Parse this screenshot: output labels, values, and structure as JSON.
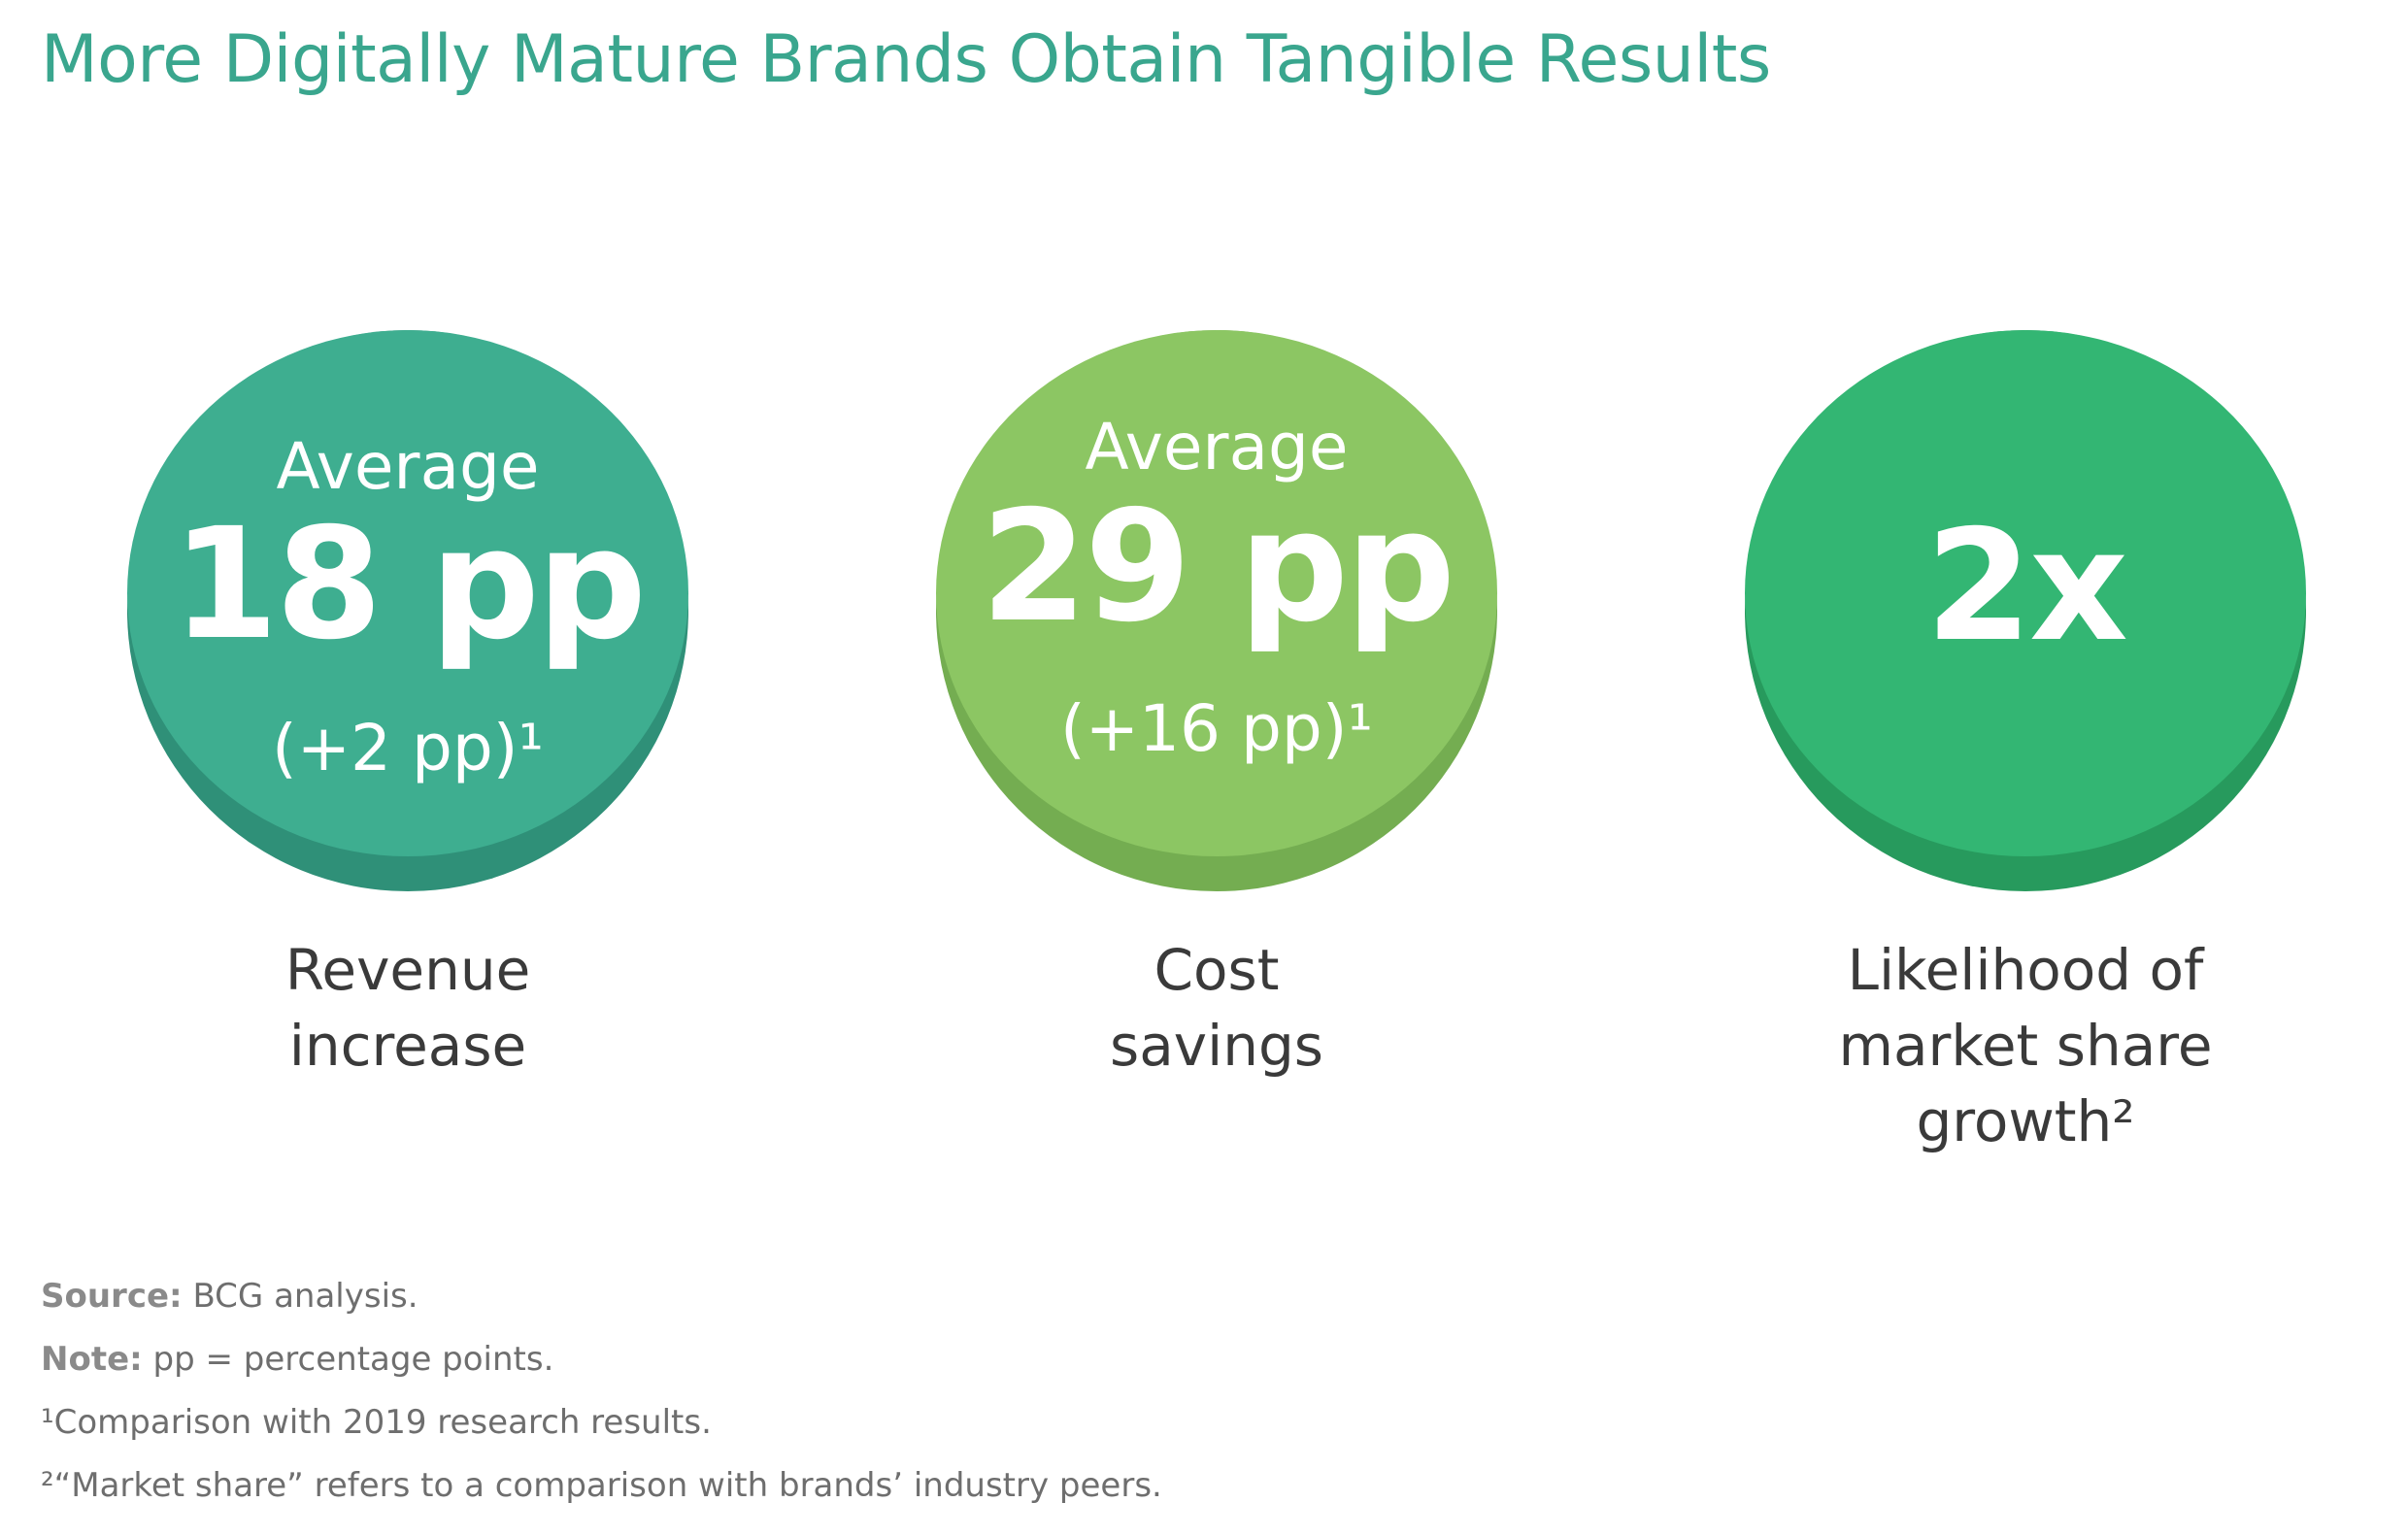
{
  "title": "More Digitally Mature Brands Obtain Tangible Results",
  "colors": {
    "title": "#3aa68e",
    "circle1": "#3eae90",
    "circle1_shadow": "#2f9078",
    "circle2": "#8cc663",
    "circle2_shadow": "#74ad51",
    "circle3": "#33b673",
    "circle3_shadow": "#279a5d"
  },
  "metrics": [
    {
      "avg_label": "Average",
      "value": "18 pp",
      "delta": "(+2 pp)¹",
      "label_lines": [
        "Revenue",
        "increase"
      ]
    },
    {
      "avg_label": "Average",
      "value": "29 pp",
      "delta": "(+16 pp)¹",
      "label_lines": [
        "Cost",
        "savings"
      ]
    },
    {
      "value": "2x",
      "label_lines": [
        "Likelihood of",
        "market share",
        "growth²"
      ]
    }
  ],
  "notes": {
    "source_label": "Source:",
    "source_text": " BCG analysis.",
    "note_label": "Note:",
    "note_text": " pp = percentage points.",
    "footnote1": "¹Comparison with 2019 research results.",
    "footnote2": "²“Market share” refers to a comparison with brands’ industry peers."
  }
}
